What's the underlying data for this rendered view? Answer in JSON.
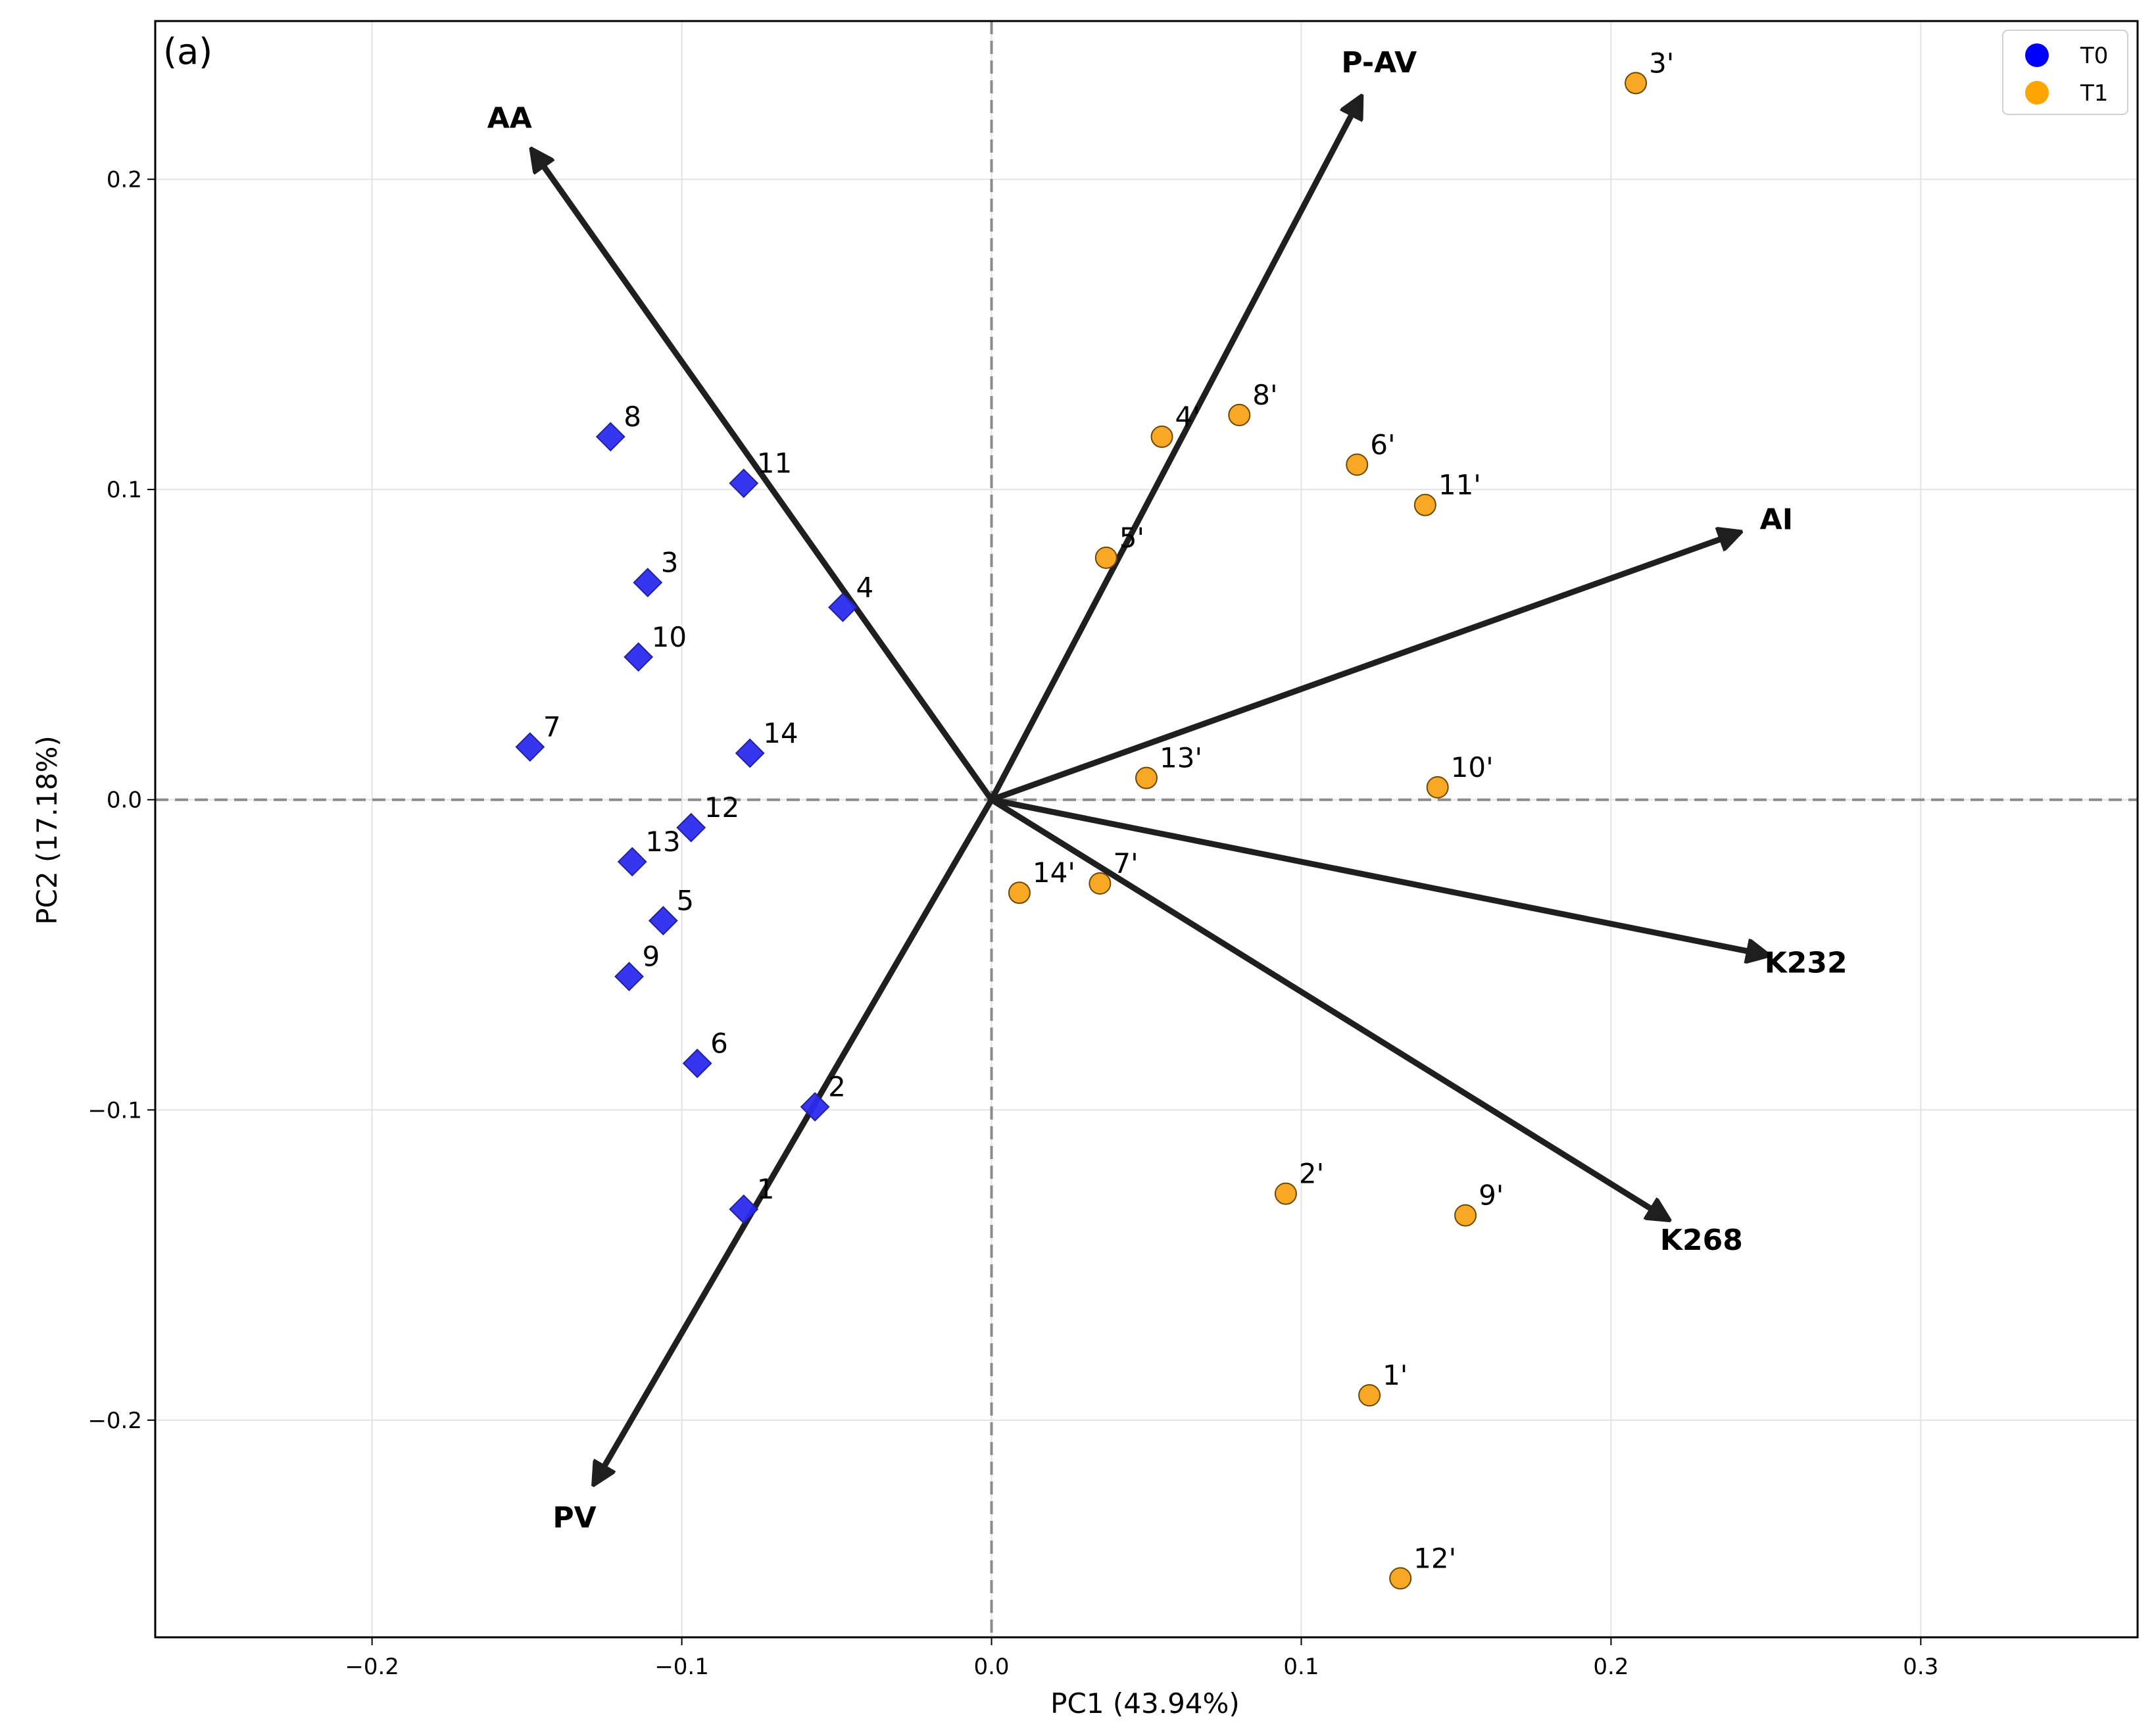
{
  "chart_data": {
    "type": "scatter",
    "panel_label": "(a)",
    "xlabel": "PC1 (43.94%)",
    "ylabel": "PC2 (17.18%)",
    "xlim": [
      -0.27,
      0.37
    ],
    "ylim": [
      -0.27,
      0.251
    ],
    "xticks": [
      -0.2,
      -0.1,
      0.0,
      0.1,
      0.2,
      0.3
    ],
    "xtick_labels": [
      "−0.2",
      "−0.1",
      "0.0",
      "0.1",
      "0.2",
      "0.3"
    ],
    "yticks": [
      -0.2,
      -0.1,
      0.0,
      0.1,
      0.2
    ],
    "ytick_labels": [
      "−0.2",
      "−0.1",
      "0.0",
      "0.1",
      "0.2"
    ],
    "grid": true,
    "legend_position": "top-right",
    "legend": [
      {
        "label": "T0",
        "color": "#0000ff"
      },
      {
        "label": "T1",
        "color": "#ffa500"
      }
    ],
    "series": [
      {
        "name": "T0",
        "marker": "diamond",
        "color": "#2b2bf0",
        "points": [
          {
            "label": "1",
            "x": -0.08,
            "y": -0.132
          },
          {
            "label": "2",
            "x": -0.057,
            "y": -0.099
          },
          {
            "label": "3",
            "x": -0.111,
            "y": 0.07
          },
          {
            "label": "4",
            "x": -0.048,
            "y": 0.062
          },
          {
            "label": "5",
            "x": -0.106,
            "y": -0.039
          },
          {
            "label": "6",
            "x": -0.095,
            "y": -0.085
          },
          {
            "label": "7",
            "x": -0.149,
            "y": 0.017
          },
          {
            "label": "8",
            "x": -0.123,
            "y": 0.117
          },
          {
            "label": "9",
            "x": -0.117,
            "y": -0.057
          },
          {
            "label": "10",
            "x": -0.114,
            "y": 0.046
          },
          {
            "label": "11",
            "x": -0.08,
            "y": 0.102
          },
          {
            "label": "12",
            "x": -0.097,
            "y": -0.009
          },
          {
            "label": "13",
            "x": -0.116,
            "y": -0.02
          },
          {
            "label": "14",
            "x": -0.078,
            "y": 0.015
          }
        ]
      },
      {
        "name": "T1",
        "marker": "circle",
        "color": "#f9a825",
        "points": [
          {
            "label": "1'",
            "x": 0.122,
            "y": -0.192
          },
          {
            "label": "2'",
            "x": 0.095,
            "y": -0.127
          },
          {
            "label": "3'",
            "x": 0.208,
            "y": 0.231
          },
          {
            "label": "4'",
            "x": 0.055,
            "y": 0.117
          },
          {
            "label": "5'",
            "x": 0.037,
            "y": 0.078
          },
          {
            "label": "6'",
            "x": 0.118,
            "y": 0.108
          },
          {
            "label": "7'",
            "x": 0.035,
            "y": -0.027
          },
          {
            "label": "8'",
            "x": 0.08,
            "y": 0.124
          },
          {
            "label": "9'",
            "x": 0.153,
            "y": -0.134
          },
          {
            "label": "10'",
            "x": 0.144,
            "y": 0.004
          },
          {
            "label": "11'",
            "x": 0.14,
            "y": 0.095
          },
          {
            "label": "12'",
            "x": 0.132,
            "y": -0.251
          },
          {
            "label": "13'",
            "x": 0.05,
            "y": 0.007
          },
          {
            "label": "14'",
            "x": 0.009,
            "y": -0.03
          }
        ]
      }
    ],
    "loadings": [
      {
        "label": "AA",
        "x": -0.148,
        "y": 0.209
      },
      {
        "label": "P-AV",
        "x": 0.119,
        "y": 0.226
      },
      {
        "label": "AI",
        "x": 0.241,
        "y": 0.086
      },
      {
        "label": "K232",
        "x": 0.25,
        "y": -0.05
      },
      {
        "label": "K268",
        "x": 0.218,
        "y": -0.135
      },
      {
        "label": "PV",
        "x": -0.128,
        "y": -0.22
      }
    ]
  }
}
